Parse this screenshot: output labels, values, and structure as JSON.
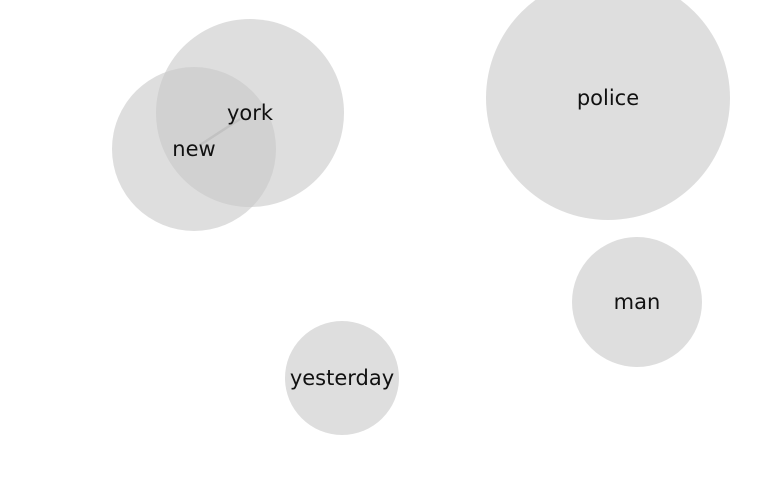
{
  "diagram": {
    "nodes": [
      {
        "id": "york",
        "label": "york"
      },
      {
        "id": "new",
        "label": "new"
      },
      {
        "id": "police",
        "label": "police"
      },
      {
        "id": "man",
        "label": "man"
      },
      {
        "id": "yesterday",
        "label": "yesterday"
      }
    ],
    "links": [
      {
        "source": "new",
        "target": "york"
      }
    ],
    "colors": {
      "circle_fill": "#c8c8c8",
      "link_stroke": "#888888",
      "label_text": "#111111",
      "background": "#ffffff"
    }
  }
}
